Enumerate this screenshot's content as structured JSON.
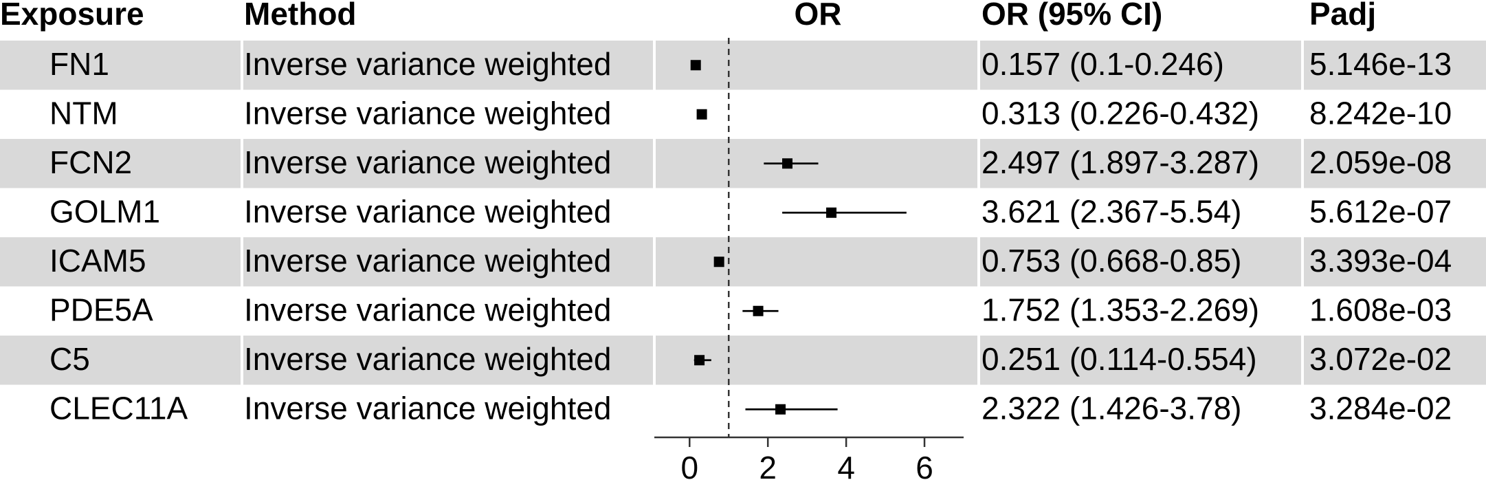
{
  "headers": {
    "exposure": "Exposure",
    "method": "Method",
    "or": "OR",
    "or_ci": "OR (95% CI)",
    "padj": "Padj"
  },
  "colors": {
    "stripe": "#d9d9d9",
    "row_background": "#ffffff",
    "marker": "#000000"
  },
  "chart_data": {
    "type": "forest",
    "title": "",
    "xlabel": "",
    "ylabel": "",
    "xlim": [
      -0.9,
      7.0
    ],
    "xticks": [
      0,
      2,
      4,
      6
    ],
    "reference_line": 1,
    "reference_line_style": "dashed",
    "grid": false,
    "legend": "none",
    "rows": [
      {
        "exposure": "FN1",
        "method": "Inverse variance weighted",
        "or": 0.157,
        "lower": 0.1,
        "upper": 0.246,
        "or_ci_text": "0.157 (0.1-0.246)",
        "padj": "5.146e-13"
      },
      {
        "exposure": "NTM",
        "method": "Inverse variance weighted",
        "or": 0.313,
        "lower": 0.226,
        "upper": 0.432,
        "or_ci_text": "0.313 (0.226-0.432)",
        "padj": "8.242e-10"
      },
      {
        "exposure": "FCN2",
        "method": "Inverse variance weighted",
        "or": 2.497,
        "lower": 1.897,
        "upper": 3.287,
        "or_ci_text": "2.497 (1.897-3.287)",
        "padj": "2.059e-08"
      },
      {
        "exposure": "GOLM1",
        "method": "Inverse variance weighted",
        "or": 3.621,
        "lower": 2.367,
        "upper": 5.54,
        "or_ci_text": "3.621 (2.367-5.54)",
        "padj": "5.612e-07"
      },
      {
        "exposure": "ICAM5",
        "method": "Inverse variance weighted",
        "or": 0.753,
        "lower": 0.668,
        "upper": 0.85,
        "or_ci_text": "0.753 (0.668-0.85)",
        "padj": "3.393e-04"
      },
      {
        "exposure": "PDE5A",
        "method": "Inverse variance weighted",
        "or": 1.752,
        "lower": 1.353,
        "upper": 2.269,
        "or_ci_text": "1.752 (1.353-2.269)",
        "padj": "1.608e-03"
      },
      {
        "exposure": "C5",
        "method": "Inverse variance weighted",
        "or": 0.251,
        "lower": 0.114,
        "upper": 0.554,
        "or_ci_text": "0.251 (0.114-0.554)",
        "padj": "3.072e-02"
      },
      {
        "exposure": "CLEC11A",
        "method": "Inverse variance weighted",
        "or": 2.322,
        "lower": 1.426,
        "upper": 3.78,
        "or_ci_text": "2.322 (1.426-3.78)",
        "padj": "3.284e-02"
      }
    ]
  }
}
